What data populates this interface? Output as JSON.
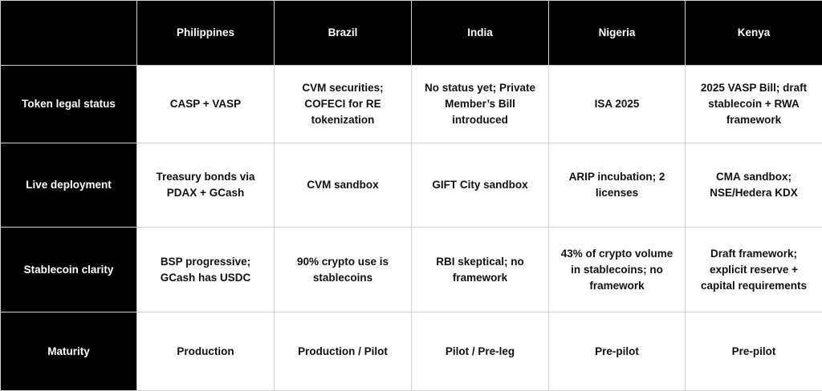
{
  "header": {
    "columns": [
      "Philippines",
      "Brazil",
      "India",
      "Nigeria",
      "Kenya"
    ]
  },
  "rows": [
    {
      "label": "Token legal status",
      "cells": [
        "CASP + VASP",
        "CVM securities; COFECI for RE tokenization",
        "No status yet; Private Member’s Bill introduced",
        "ISA 2025",
        "2025 VASP Bill; draft stablecoin + RWA framework"
      ]
    },
    {
      "label": "Live deployment",
      "cells": [
        "Treasury bonds via PDAX + GCash",
        "CVM sandbox",
        "GIFT City sandbox",
        "ARIP incubation; 2 licenses",
        "CMA sandbox; NSE/Hedera KDX"
      ]
    },
    {
      "label": "Stablecoin clarity",
      "cells": [
        "BSP progressive; GCash has USDC",
        "90% crypto use is stablecoins",
        "RBI skeptical; no framework",
        "43% of crypto volume in stablecoins; no framework",
        "Draft framework; explicit reserve + capital requirements"
      ]
    },
    {
      "label": "Maturity",
      "cells": [
        "Production",
        "Production / Pilot",
        "Pilot / Pre-leg",
        "Pre-pilot",
        "Pre-pilot"
      ]
    }
  ]
}
